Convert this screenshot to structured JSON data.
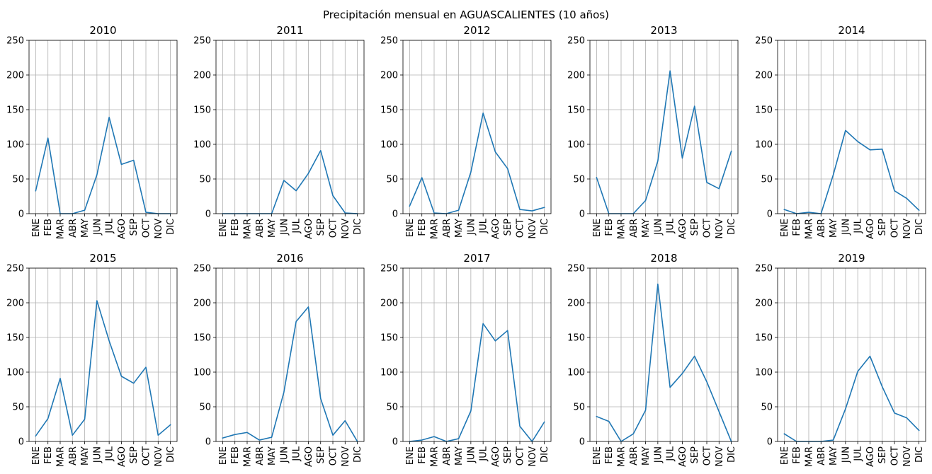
{
  "chart_data": {
    "type": "line",
    "title": "Precipitación mensual en AGUASCALIENTES (10 años)",
    "xlabel": "",
    "ylabel": "",
    "categories": [
      "ENE",
      "FEB",
      "MAR",
      "ABR",
      "MAY",
      "JUN",
      "JUL",
      "AGO",
      "SEP",
      "OCT",
      "NOV",
      "DIC"
    ],
    "ylim": [
      0,
      250
    ],
    "yticks": [
      0,
      50,
      100,
      150,
      200,
      250
    ],
    "grid": true,
    "line_color": "#1f77b4",
    "panels": [
      {
        "title": "2010",
        "values": [
          33,
          109,
          0,
          0,
          5,
          56,
          139,
          71,
          77,
          2,
          0,
          0
        ]
      },
      {
        "title": "2011",
        "values": [
          0,
          0,
          0,
          0,
          0,
          48,
          33,
          58,
          91,
          26,
          1,
          0
        ]
      },
      {
        "title": "2012",
        "values": [
          11,
          52,
          1,
          0,
          5,
          60,
          145,
          89,
          65,
          6,
          4,
          9
        ]
      },
      {
        "title": "2013",
        "values": [
          52,
          0,
          0,
          0,
          19,
          76,
          206,
          80,
          155,
          45,
          36,
          90
        ]
      },
      {
        "title": "2014",
        "values": [
          6,
          0,
          2,
          0,
          56,
          120,
          104,
          92,
          93,
          33,
          22,
          5
        ]
      },
      {
        "title": "2015",
        "values": [
          8,
          33,
          91,
          9,
          32,
          203,
          145,
          94,
          84,
          107,
          9,
          24
        ]
      },
      {
        "title": "2016",
        "values": [
          5,
          10,
          13,
          2,
          6,
          71,
          173,
          194,
          62,
          9,
          30,
          0
        ]
      },
      {
        "title": "2017",
        "values": [
          0,
          2,
          7,
          0,
          4,
          44,
          170,
          145,
          160,
          22,
          0,
          28
        ]
      },
      {
        "title": "2018",
        "values": [
          36,
          29,
          0,
          11,
          45,
          227,
          78,
          98,
          123,
          86,
          43,
          0
        ]
      },
      {
        "title": "2019",
        "values": [
          11,
          0,
          0,
          0,
          2,
          47,
          101,
          123,
          79,
          41,
          34,
          16
        ]
      }
    ]
  }
}
